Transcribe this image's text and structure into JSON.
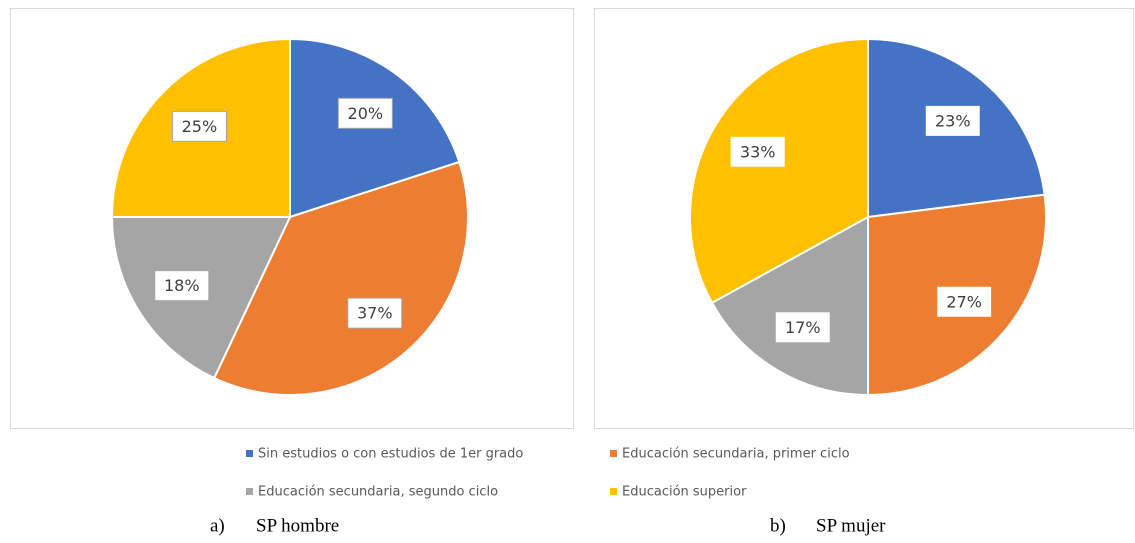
{
  "chart_data": [
    {
      "type": "pie",
      "label": "a)",
      "title": "SP hombre",
      "categories": [
        "Sin estudios o con estudios de 1er grado",
        "Educación secundaria, primer ciclo",
        "Educación secundaria, segundo ciclo",
        "Educación superior"
      ],
      "colors": [
        "#4472c4",
        "#ed7d31",
        "#a5a5a5",
        "#ffc000"
      ],
      "values": [
        20,
        37,
        18,
        25
      ],
      "value_labels": [
        "20%",
        "37%",
        "18%",
        "25%"
      ]
    },
    {
      "type": "pie",
      "label": "b)",
      "title": "SP mujer",
      "values": [
        23,
        27,
        17,
        33
      ],
      "value_labels": [
        "23%",
        "27%",
        "17%",
        "33%"
      ]
    }
  ]
}
